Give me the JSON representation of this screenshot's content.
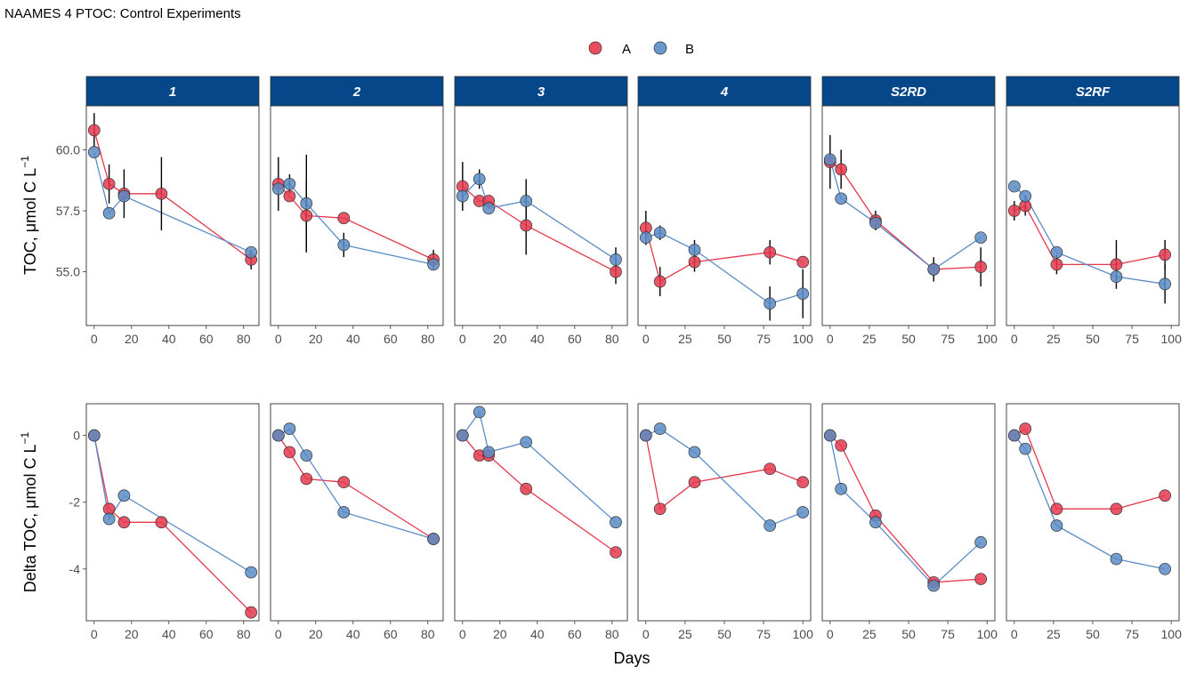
{
  "chart_data": {
    "type": "scatter",
    "title": "NAAMES 4 PTOC: Control Experiments",
    "xlabel": "Days",
    "ylabel_top": "TOC, μmol C L",
    "ylabel_bottom": "Delta TOC, μmol C L",
    "ylabel_superscript": "−1",
    "legend": {
      "position": "top",
      "entries": [
        {
          "name": "A",
          "color": "#e5384d"
        },
        {
          "name": "B",
          "color": "#5b8cc5"
        }
      ]
    },
    "strip_color": "#064789",
    "line_colors": {
      "A": "#e5384d",
      "B": "#5b8cc5"
    },
    "top_ylim": [
      52.8,
      61.8
    ],
    "top_yticks": [
      55,
      57.5,
      60
    ],
    "top_ytick_labels": [
      "55.0",
      "57.5",
      "60.0"
    ],
    "bottom_ylim": [
      -5.55,
      0.95
    ],
    "bottom_yticks": [
      -4,
      -2,
      0
    ],
    "bottom_ytick_labels": [
      "-4",
      "-2",
      "0"
    ],
    "panels": [
      {
        "label": "1",
        "xlim": [
          -4.2,
          88.2
        ],
        "xticks": [
          0,
          20,
          40,
          60,
          80
        ],
        "toc": {
          "A": [
            {
              "x": 0,
              "y": 60.8,
              "err": 0.7
            },
            {
              "x": 8,
              "y": 58.6,
              "err": 0.8
            },
            {
              "x": 16,
              "y": 58.2,
              "err": 1.0
            },
            {
              "x": 36,
              "y": 58.2,
              "err": 1.5
            },
            {
              "x": 84,
              "y": 55.5,
              "err": 0.4
            }
          ],
          "B": [
            {
              "x": 0,
              "y": 59.9,
              "err": 0
            },
            {
              "x": 8,
              "y": 57.4,
              "err": 0
            },
            {
              "x": 16,
              "y": 58.1,
              "err": 0
            },
            {
              "x": 84,
              "y": 55.8,
              "err": 0
            }
          ]
        },
        "delta": {
          "A": [
            {
              "x": 0,
              "y": 0
            },
            {
              "x": 8,
              "y": -2.2
            },
            {
              "x": 16,
              "y": -2.6
            },
            {
              "x": 36,
              "y": -2.6
            },
            {
              "x": 84,
              "y": -5.3
            }
          ],
          "B": [
            {
              "x": 0,
              "y": 0
            },
            {
              "x": 8,
              "y": -2.5
            },
            {
              "x": 16,
              "y": -1.8
            },
            {
              "x": 84,
              "y": -4.1
            }
          ]
        }
      },
      {
        "label": "2",
        "xlim": [
          -4.2,
          88.2
        ],
        "xticks": [
          0,
          20,
          40,
          60,
          80
        ],
        "toc": {
          "A": [
            {
              "x": 0,
              "y": 58.6,
              "err": 1.1
            },
            {
              "x": 6,
              "y": 58.1,
              "err": 0
            },
            {
              "x": 15,
              "y": 57.3,
              "err": 1.5
            },
            {
              "x": 35,
              "y": 57.2,
              "err": 0
            },
            {
              "x": 83,
              "y": 55.5,
              "err": 0.4
            }
          ],
          "B": [
            {
              "x": 0,
              "y": 58.4,
              "err": 0
            },
            {
              "x": 6,
              "y": 58.6,
              "err": 0.4
            },
            {
              "x": 15,
              "y": 57.8,
              "err": 2.0
            },
            {
              "x": 35,
              "y": 56.1,
              "err": 0.5
            },
            {
              "x": 83,
              "y": 55.3,
              "err": 0
            }
          ]
        },
        "delta": {
          "A": [
            {
              "x": 0,
              "y": 0
            },
            {
              "x": 6,
              "y": -0.5
            },
            {
              "x": 15,
              "y": -1.3
            },
            {
              "x": 35,
              "y": -1.4
            },
            {
              "x": 83,
              "y": -3.1
            }
          ],
          "B": [
            {
              "x": 0,
              "y": 0
            },
            {
              "x": 6,
              "y": 0.2
            },
            {
              "x": 15,
              "y": -0.6
            },
            {
              "x": 35,
              "y": -2.3
            },
            {
              "x": 83,
              "y": -3.1
            }
          ]
        }
      },
      {
        "label": "3",
        "xlim": [
          -4.2,
          88.2
        ],
        "xticks": [
          0,
          20,
          40,
          60,
          80
        ],
        "toc": {
          "A": [
            {
              "x": 0,
              "y": 58.5,
              "err": 1.0
            },
            {
              "x": 9,
              "y": 57.9,
              "err": 0
            },
            {
              "x": 14,
              "y": 57.9,
              "err": 0
            },
            {
              "x": 34,
              "y": 56.9,
              "err": 1.2
            },
            {
              "x": 82,
              "y": 55.0,
              "err": 0.5
            }
          ],
          "B": [
            {
              "x": 0,
              "y": 58.1,
              "err": 0
            },
            {
              "x": 9,
              "y": 58.8,
              "err": 0.4
            },
            {
              "x": 14,
              "y": 57.6,
              "err": 0
            },
            {
              "x": 34,
              "y": 57.9,
              "err": 0.9
            },
            {
              "x": 82,
              "y": 55.5,
              "err": 0.5
            }
          ]
        },
        "delta": {
          "A": [
            {
              "x": 0,
              "y": 0
            },
            {
              "x": 9,
              "y": -0.6
            },
            {
              "x": 14,
              "y": -0.6
            },
            {
              "x": 34,
              "y": -1.6
            },
            {
              "x": 82,
              "y": -3.5
            }
          ],
          "B": [
            {
              "x": 0,
              "y": 0
            },
            {
              "x": 9,
              "y": 0.7
            },
            {
              "x": 14,
              "y": -0.5
            },
            {
              "x": 34,
              "y": -0.2
            },
            {
              "x": 82,
              "y": -2.6
            }
          ]
        }
      },
      {
        "label": "4",
        "xlim": [
          -5,
          105
        ],
        "xticks": [
          0,
          25,
          50,
          75,
          100
        ],
        "toc": {
          "A": [
            {
              "x": 0,
              "y": 56.8,
              "err": 0.7
            },
            {
              "x": 9,
              "y": 54.6,
              "err": 0.6
            },
            {
              "x": 31,
              "y": 55.4,
              "err": 0.4
            },
            {
              "x": 79,
              "y": 55.8,
              "err": 0.5
            },
            {
              "x": 100,
              "y": 55.4,
              "err": 0
            }
          ],
          "B": [
            {
              "x": 0,
              "y": 56.4,
              "err": 0
            },
            {
              "x": 9,
              "y": 56.6,
              "err": 0.3
            },
            {
              "x": 31,
              "y": 55.9,
              "err": 0.4
            },
            {
              "x": 79,
              "y": 53.7,
              "err": 0.7
            },
            {
              "x": 100,
              "y": 54.1,
              "err": 1.0
            }
          ]
        },
        "delta": {
          "A": [
            {
              "x": 0,
              "y": 0
            },
            {
              "x": 9,
              "y": -2.2
            },
            {
              "x": 31,
              "y": -1.4
            },
            {
              "x": 79,
              "y": -1.0
            },
            {
              "x": 100,
              "y": -1.4
            }
          ],
          "B": [
            {
              "x": 0,
              "y": 0
            },
            {
              "x": 9,
              "y": 0.2
            },
            {
              "x": 31,
              "y": -0.5
            },
            {
              "x": 79,
              "y": -2.7
            },
            {
              "x": 100,
              "y": -2.3
            }
          ]
        }
      },
      {
        "label": "S2RD",
        "xlim": [
          -5,
          105
        ],
        "xticks": [
          0,
          25,
          50,
          75,
          100
        ],
        "toc": {
          "A": [
            {
              "x": 0,
              "y": 59.5,
              "err": 1.1
            },
            {
              "x": 7,
              "y": 59.2,
              "err": 0.8
            },
            {
              "x": 29,
              "y": 57.1,
              "err": 0.4
            },
            {
              "x": 66,
              "y": 55.1,
              "err": 0.5
            },
            {
              "x": 96,
              "y": 55.2,
              "err": 0.8
            }
          ],
          "B": [
            {
              "x": 0,
              "y": 59.6,
              "err": 0
            },
            {
              "x": 7,
              "y": 58.0,
              "err": 0
            },
            {
              "x": 29,
              "y": 57.0,
              "err": 0
            },
            {
              "x": 66,
              "y": 55.1,
              "err": 0
            },
            {
              "x": 96,
              "y": 56.4,
              "err": 0
            }
          ]
        },
        "delta": {
          "A": [
            {
              "x": 0,
              "y": 0
            },
            {
              "x": 7,
              "y": -0.3
            },
            {
              "x": 29,
              "y": -2.4
            },
            {
              "x": 66,
              "y": -4.4
            },
            {
              "x": 96,
              "y": -4.3
            }
          ],
          "B": [
            {
              "x": 0,
              "y": 0
            },
            {
              "x": 7,
              "y": -1.6
            },
            {
              "x": 29,
              "y": -2.6
            },
            {
              "x": 66,
              "y": -4.5
            },
            {
              "x": 96,
              "y": -3.2
            }
          ]
        }
      },
      {
        "label": "S2RF",
        "xlim": [
          -5,
          105
        ],
        "xticks": [
          0,
          25,
          50,
          75,
          100
        ],
        "toc": {
          "A": [
            {
              "x": 0,
              "y": 57.5,
              "err": 0.4
            },
            {
              "x": 7,
              "y": 57.7,
              "err": 0.4
            },
            {
              "x": 27,
              "y": 55.3,
              "err": 0.4
            },
            {
              "x": 65,
              "y": 55.3,
              "err": 1.0
            },
            {
              "x": 96,
              "y": 55.7,
              "err": 0.6
            }
          ],
          "B": [
            {
              "x": 0,
              "y": 58.5,
              "err": 0
            },
            {
              "x": 7,
              "y": 58.1,
              "err": 0
            },
            {
              "x": 27,
              "y": 55.8,
              "err": 0
            },
            {
              "x": 65,
              "y": 54.8,
              "err": 0
            },
            {
              "x": 96,
              "y": 54.5,
              "err": 0.8
            }
          ]
        },
        "delta": {
          "A": [
            {
              "x": 0,
              "y": 0
            },
            {
              "x": 7,
              "y": 0.2
            },
            {
              "x": 27,
              "y": -2.2
            },
            {
              "x": 65,
              "y": -2.2
            },
            {
              "x": 96,
              "y": -1.8
            }
          ],
          "B": [
            {
              "x": 0,
              "y": 0
            },
            {
              "x": 7,
              "y": -0.4
            },
            {
              "x": 27,
              "y": -2.7
            },
            {
              "x": 65,
              "y": -3.7
            },
            {
              "x": 96,
              "y": -4.0
            }
          ]
        }
      }
    ]
  }
}
